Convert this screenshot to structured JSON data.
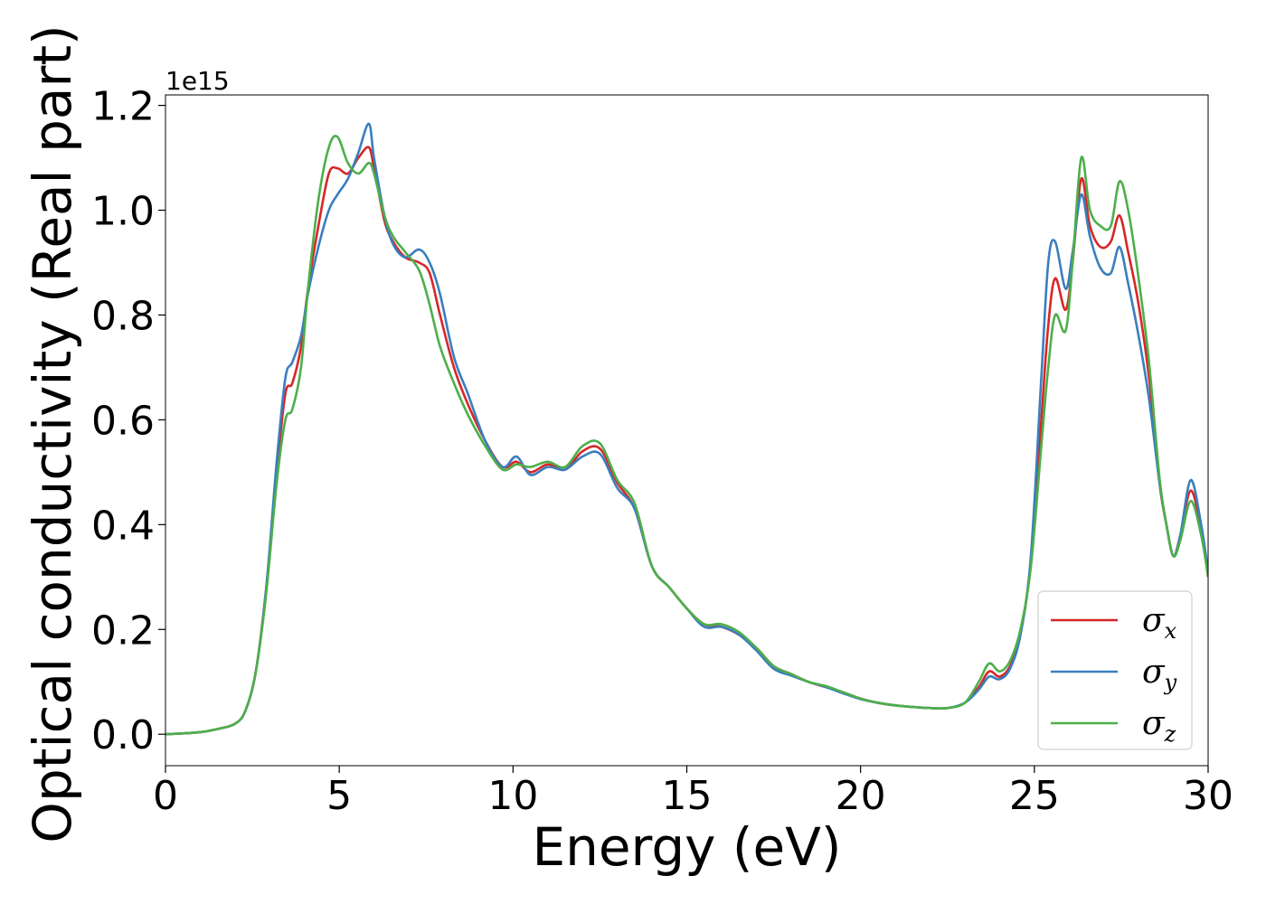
{
  "chart_data": {
    "type": "line",
    "title": "",
    "xlabel": "Energy (eV)",
    "ylabel": "Optical conductivity (Real part)",
    "y_offset_label": "1e15",
    "xlim": [
      0,
      30
    ],
    "ylim": [
      -0.06,
      1.22
    ],
    "xticks": [
      0,
      5,
      10,
      15,
      20,
      25,
      30
    ],
    "xtick_labels": [
      "0",
      "5",
      "10",
      "15",
      "20",
      "25",
      "30"
    ],
    "yticks": [
      0.0,
      0.2,
      0.4,
      0.6,
      0.8,
      1.0,
      1.2
    ],
    "ytick_labels": [
      "0.0",
      "0.2",
      "0.4",
      "0.6",
      "0.8",
      "1.0",
      "1.2"
    ],
    "grid": false,
    "legend_position": "lower-right",
    "series": [
      {
        "name": "σx",
        "symbol": "σ",
        "sub": "x",
        "color": "#d62728",
        "x": [
          0,
          1,
          1.5,
          2,
          2.3,
          2.6,
          2.9,
          3.2,
          3.45,
          3.65,
          3.9,
          4.1,
          4.4,
          4.7,
          4.95,
          5.25,
          5.55,
          5.85,
          6.0,
          6.3,
          6.55,
          6.9,
          7.3,
          7.6,
          7.9,
          8.3,
          8.7,
          9.2,
          9.7,
          10.1,
          10.5,
          11.0,
          11.5,
          12.0,
          12.5,
          13.0,
          13.5,
          14.0,
          14.5,
          15.0,
          15.5,
          16.0,
          16.5,
          17.0,
          17.5,
          18.0,
          18.5,
          19.0,
          19.5,
          20.0,
          20.5,
          21.0,
          21.5,
          22.0,
          22.5,
          23.0,
          23.4,
          23.7,
          24.0,
          24.3,
          24.6,
          24.9,
          25.2,
          25.4,
          25.6,
          25.9,
          26.1,
          26.35,
          26.6,
          26.9,
          27.2,
          27.45,
          27.7,
          28.0,
          28.3,
          28.6,
          28.8,
          29.0,
          29.2,
          29.5,
          29.8,
          30.0
        ],
        "y": [
          0.0,
          0.004,
          0.01,
          0.02,
          0.045,
          0.12,
          0.28,
          0.5,
          0.65,
          0.67,
          0.74,
          0.85,
          0.97,
          1.07,
          1.08,
          1.07,
          1.1,
          1.12,
          1.08,
          0.98,
          0.94,
          0.91,
          0.9,
          0.88,
          0.8,
          0.7,
          0.63,
          0.56,
          0.51,
          0.52,
          0.5,
          0.515,
          0.505,
          0.54,
          0.545,
          0.48,
          0.43,
          0.32,
          0.28,
          0.24,
          0.21,
          0.205,
          0.19,
          0.165,
          0.13,
          0.115,
          0.1,
          0.09,
          0.08,
          0.068,
          0.06,
          0.055,
          0.052,
          0.05,
          0.05,
          0.06,
          0.09,
          0.12,
          0.11,
          0.13,
          0.19,
          0.33,
          0.6,
          0.78,
          0.87,
          0.81,
          0.9,
          1.06,
          0.97,
          0.93,
          0.94,
          0.99,
          0.92,
          0.82,
          0.68,
          0.48,
          0.4,
          0.34,
          0.38,
          0.465,
          0.39,
          0.3
        ]
      },
      {
        "name": "σy",
        "symbol": "σ",
        "sub": "y",
        "color": "#3a7ebf",
        "x": [
          0,
          1,
          1.5,
          2,
          2.3,
          2.6,
          2.9,
          3.2,
          3.45,
          3.65,
          3.9,
          4.1,
          4.4,
          4.7,
          4.95,
          5.25,
          5.55,
          5.85,
          6.0,
          6.3,
          6.55,
          6.9,
          7.3,
          7.6,
          7.9,
          8.3,
          8.7,
          9.2,
          9.7,
          10.1,
          10.5,
          11.0,
          11.5,
          12.0,
          12.5,
          13.0,
          13.5,
          14.0,
          14.5,
          15.0,
          15.5,
          16.0,
          16.5,
          17.0,
          17.5,
          18.0,
          18.5,
          19.0,
          19.5,
          20.0,
          20.5,
          21.0,
          21.5,
          22.0,
          22.5,
          23.0,
          23.4,
          23.7,
          24.0,
          24.3,
          24.6,
          24.9,
          25.2,
          25.4,
          25.6,
          25.9,
          26.1,
          26.35,
          26.6,
          26.9,
          27.2,
          27.45,
          27.7,
          28.0,
          28.3,
          28.6,
          28.8,
          29.0,
          29.2,
          29.5,
          29.8,
          30.0
        ],
        "y": [
          0.0,
          0.004,
          0.01,
          0.02,
          0.045,
          0.12,
          0.28,
          0.52,
          0.68,
          0.71,
          0.76,
          0.84,
          0.93,
          1.0,
          1.03,
          1.06,
          1.11,
          1.165,
          1.1,
          0.99,
          0.935,
          0.91,
          0.925,
          0.9,
          0.84,
          0.72,
          0.65,
          0.56,
          0.51,
          0.53,
          0.495,
          0.51,
          0.505,
          0.53,
          0.535,
          0.47,
          0.43,
          0.32,
          0.28,
          0.24,
          0.205,
          0.205,
          0.19,
          0.16,
          0.125,
          0.112,
          0.1,
          0.09,
          0.078,
          0.067,
          0.06,
          0.055,
          0.052,
          0.05,
          0.05,
          0.06,
          0.085,
          0.11,
          0.105,
          0.125,
          0.19,
          0.34,
          0.68,
          0.9,
          0.94,
          0.85,
          0.92,
          1.03,
          0.95,
          0.89,
          0.88,
          0.93,
          0.86,
          0.76,
          0.64,
          0.48,
          0.4,
          0.34,
          0.38,
          0.485,
          0.4,
          0.31
        ]
      },
      {
        "name": "σz",
        "symbol": "σ",
        "sub": "z",
        "color": "#4daf4a",
        "x": [
          0,
          1,
          1.5,
          2,
          2.3,
          2.6,
          2.9,
          3.2,
          3.45,
          3.65,
          3.9,
          4.1,
          4.4,
          4.7,
          4.95,
          5.25,
          5.55,
          5.85,
          6.0,
          6.3,
          6.55,
          6.9,
          7.3,
          7.6,
          7.9,
          8.3,
          8.7,
          9.2,
          9.7,
          10.1,
          10.5,
          11.0,
          11.5,
          12.0,
          12.5,
          13.0,
          13.5,
          14.0,
          14.5,
          15.0,
          15.5,
          16.0,
          16.5,
          17.0,
          17.5,
          18.0,
          18.5,
          19.0,
          19.5,
          20.0,
          20.5,
          21.0,
          21.5,
          22.0,
          22.5,
          23.0,
          23.4,
          23.7,
          24.0,
          24.3,
          24.6,
          24.9,
          25.2,
          25.4,
          25.6,
          25.9,
          26.1,
          26.35,
          26.6,
          26.9,
          27.2,
          27.45,
          27.7,
          28.0,
          28.3,
          28.6,
          28.8,
          29.0,
          29.2,
          29.5,
          29.8,
          30.0
        ],
        "y": [
          0.0,
          0.004,
          0.01,
          0.02,
          0.045,
          0.12,
          0.27,
          0.48,
          0.6,
          0.62,
          0.7,
          0.85,
          1.02,
          1.12,
          1.14,
          1.09,
          1.07,
          1.09,
          1.07,
          0.99,
          0.95,
          0.92,
          0.885,
          0.82,
          0.74,
          0.67,
          0.61,
          0.55,
          0.505,
          0.515,
          0.51,
          0.52,
          0.51,
          0.55,
          0.555,
          0.485,
          0.44,
          0.32,
          0.28,
          0.24,
          0.21,
          0.21,
          0.195,
          0.165,
          0.13,
          0.115,
          0.1,
          0.092,
          0.08,
          0.068,
          0.06,
          0.055,
          0.052,
          0.05,
          0.05,
          0.06,
          0.1,
          0.135,
          0.12,
          0.14,
          0.2,
          0.32,
          0.55,
          0.7,
          0.8,
          0.77,
          0.9,
          1.1,
          1.0,
          0.97,
          0.97,
          1.055,
          1.0,
          0.87,
          0.71,
          0.49,
          0.4,
          0.34,
          0.37,
          0.445,
          0.38,
          0.3
        ]
      }
    ]
  }
}
